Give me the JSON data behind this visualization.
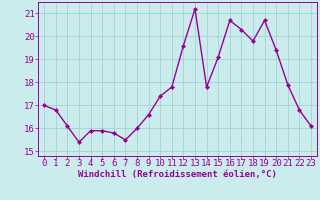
{
  "x": [
    0,
    1,
    2,
    3,
    4,
    5,
    6,
    7,
    8,
    9,
    10,
    11,
    12,
    13,
    14,
    15,
    16,
    17,
    18,
    19,
    20,
    21,
    22,
    23
  ],
  "y": [
    17.0,
    16.8,
    16.1,
    15.4,
    15.9,
    15.9,
    15.8,
    15.5,
    16.0,
    16.6,
    17.4,
    17.8,
    19.6,
    21.2,
    17.8,
    19.1,
    20.7,
    20.3,
    19.8,
    20.7,
    19.4,
    17.9,
    16.8,
    16.1
  ],
  "line_color": "#990099",
  "marker": "D",
  "marker_size": 2,
  "bg_color": "#cbecec",
  "grid_color": "#aad4d4",
  "ylabel_ticks": [
    15,
    16,
    17,
    18,
    19,
    20,
    21
  ],
  "xlabel": "Windchill (Refroidissement éolien,°C)",
  "xlim": [
    -0.5,
    23.5
  ],
  "ylim": [
    14.8,
    21.5
  ],
  "tick_color": "#990099",
  "xlabel_color": "#990099",
  "xlabel_fontsize": 6.5,
  "tick_fontsize": 6.5,
  "linewidth": 1.0
}
